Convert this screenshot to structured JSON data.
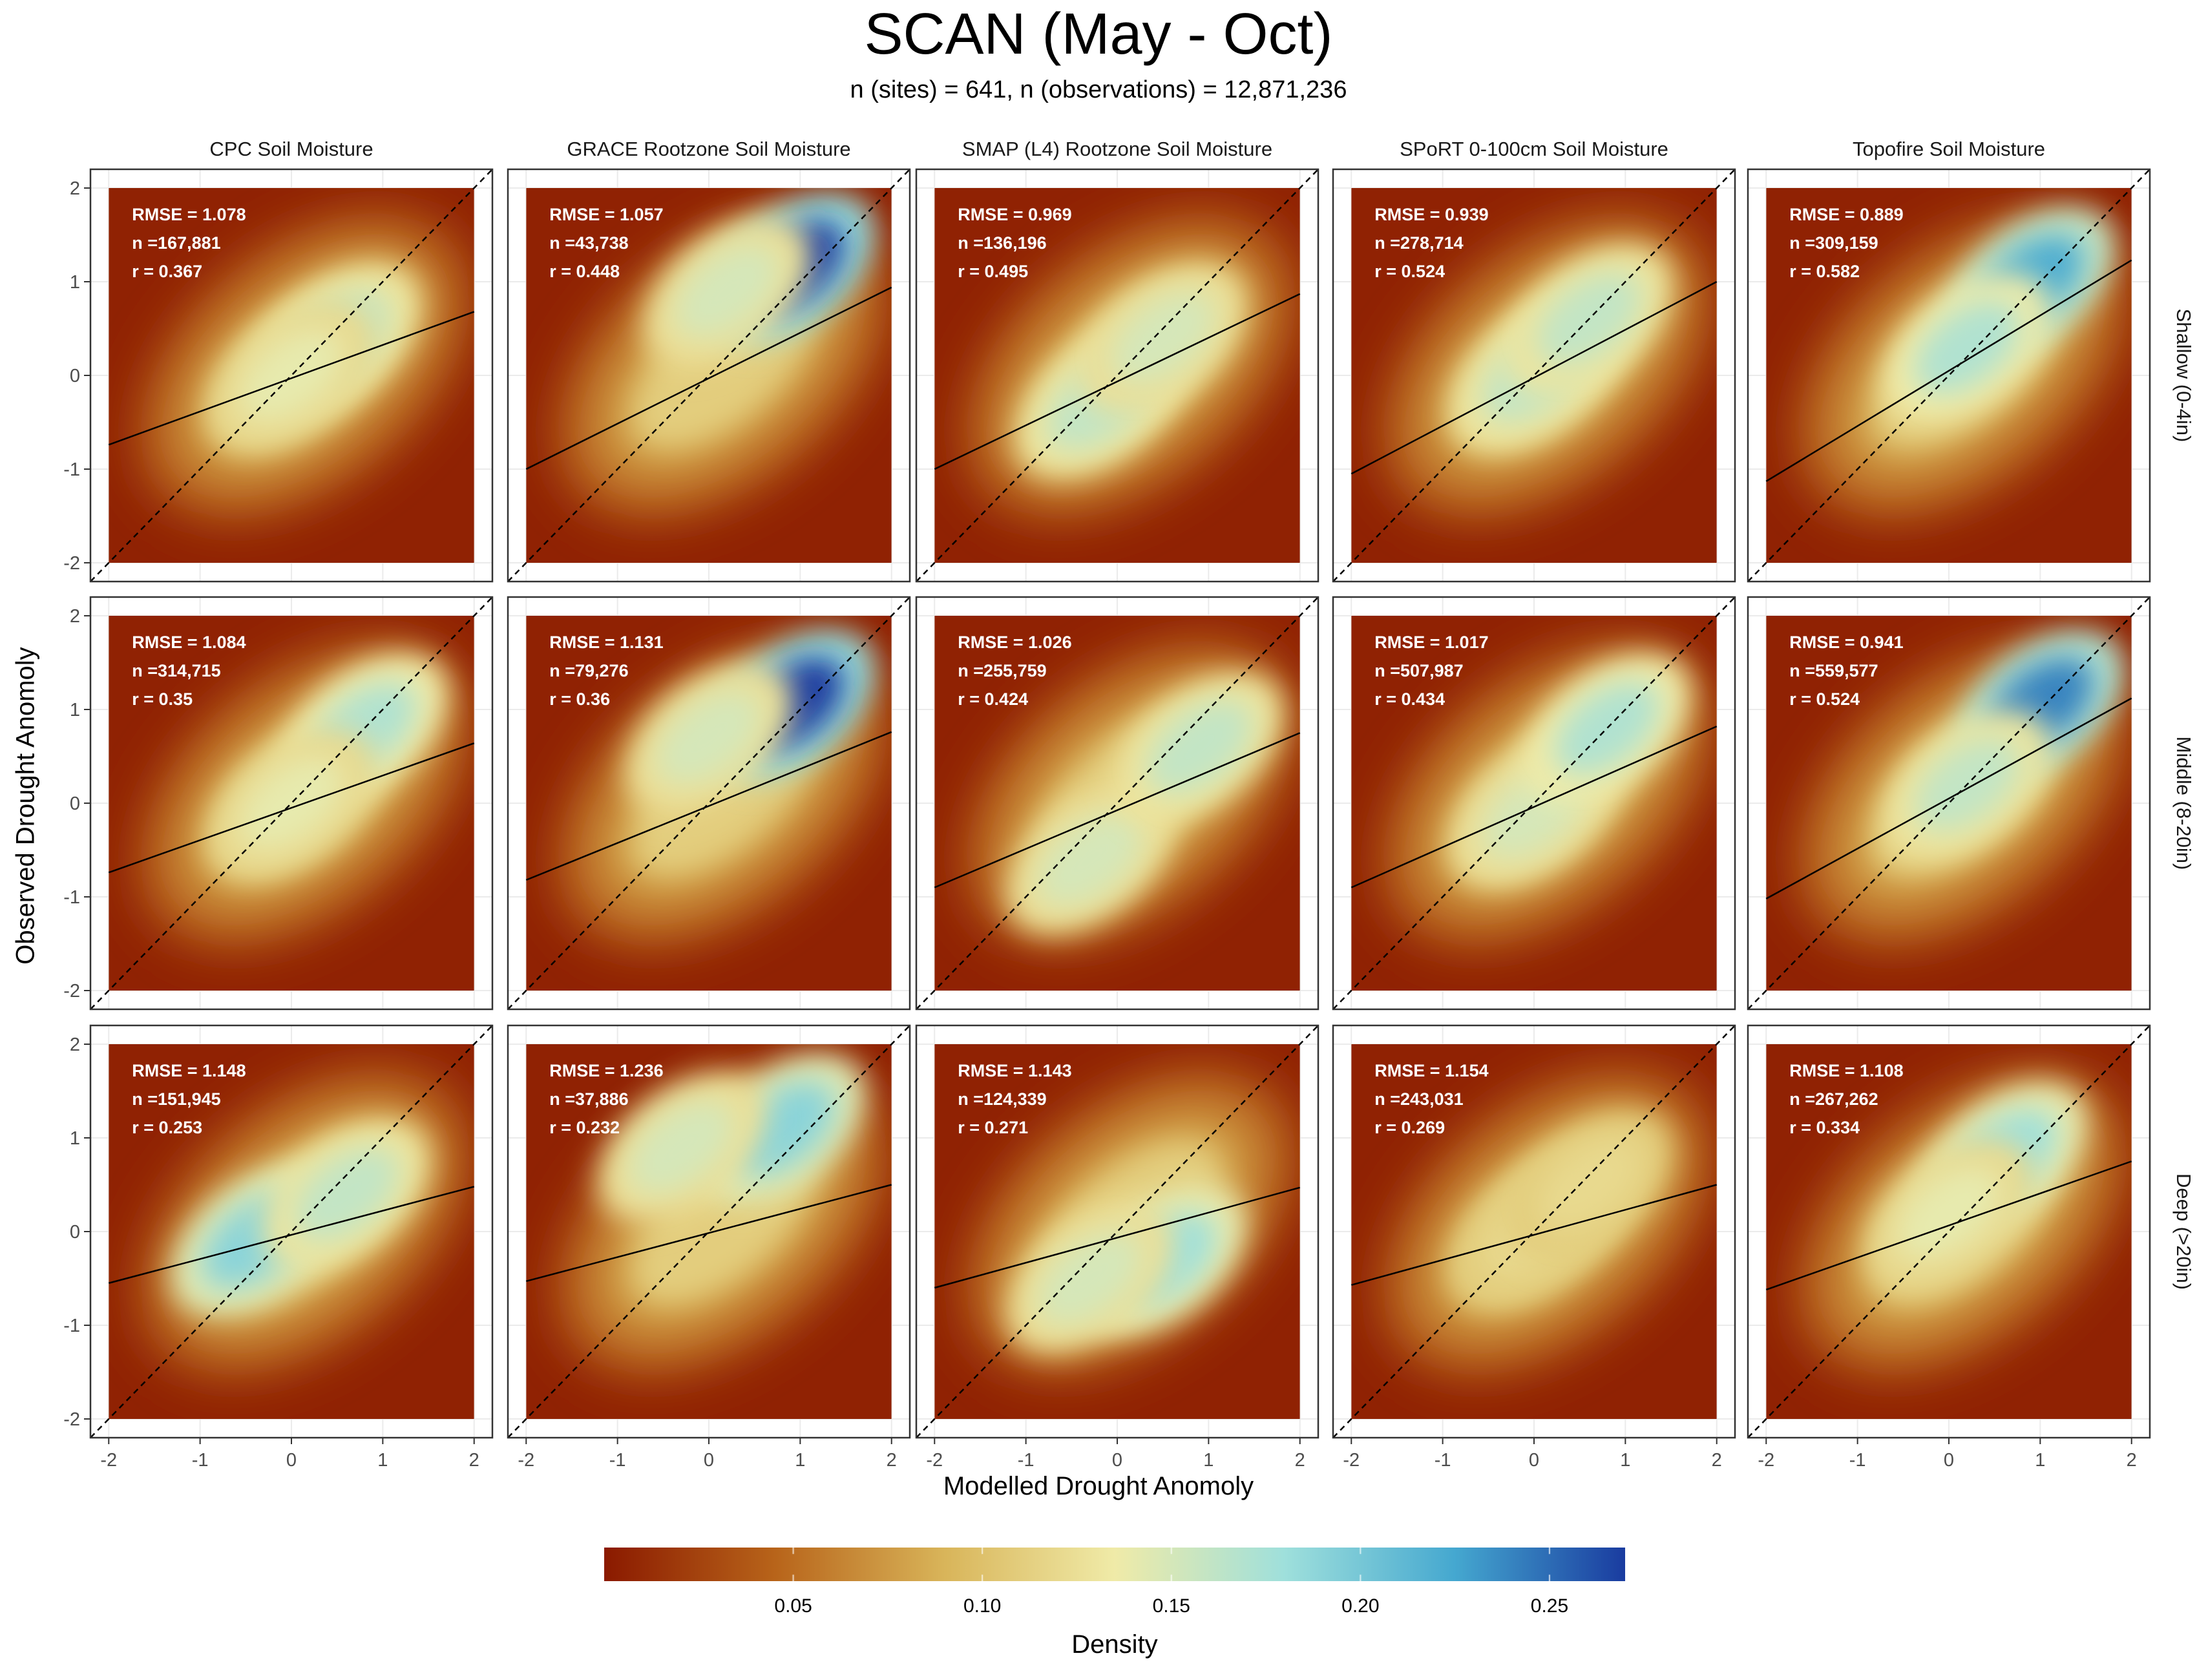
{
  "title": "SCAN (May - Oct)",
  "subtitle": "n (sites) = 641, n (observations) = 12,871,236",
  "xlabel": "Modelled Drought Anomoly",
  "ylabel": "Observed Drought Anomoly",
  "legend": {
    "title": "Density",
    "ticks": [
      "0.05",
      "0.10",
      "0.15",
      "0.20",
      "0.25"
    ],
    "tick_values": [
      0.05,
      0.1,
      0.15,
      0.2,
      0.25
    ],
    "range": [
      0.0,
      0.27
    ],
    "colors": [
      "#8b1a00",
      "#b8641a",
      "#d9b55a",
      "#f0eba8",
      "#9fe0dc",
      "#45a8d0",
      "#1a3ca0"
    ]
  },
  "chart_data": {
    "type": "heatmap",
    "title": "SCAN (May - Oct)",
    "subtitle": "n (sites) = 641, n (observations) = 12,871,236",
    "xlabel": "Modelled Drought Anomoly",
    "ylabel": "Observed Drought Anomoly",
    "xlim": [
      -2,
      2
    ],
    "ylim": [
      -2,
      2
    ],
    "x_ticks": [
      "-2",
      "-1",
      "0",
      "1",
      "2"
    ],
    "y_ticks": [
      "-2",
      "-1",
      "0",
      "1",
      "2"
    ],
    "x_tick_values": [
      -2,
      -1,
      0,
      1,
      2
    ],
    "y_tick_values": [
      -2,
      -1,
      0,
      1,
      2
    ],
    "grid": true,
    "columns": [
      "CPC Soil Moisture",
      "GRACE Rootzone Soil Moisture",
      "SMAP (L4) Rootzone Soil Moisture",
      "SPoRT 0-100cm Soil Moisture",
      "Topofire Soil Moisture"
    ],
    "rows": [
      "Shallow (0-4in)",
      "Middle (8-20in)",
      "Deep (>20in)"
    ],
    "reference_line": "1:1 (dashed)",
    "panels": [
      {
        "row": 0,
        "col": 0,
        "rmse": "RMSE = 1.078",
        "n": "n =167,881",
        "r": "r = 0.367",
        "fit": [
          -0.74,
          0.68
        ],
        "hotspots": [
          {
            "x": 0.5,
            "y": 0.4,
            "d": 0.16
          },
          {
            "x": 0.0,
            "y": 0.0,
            "d": 0.14
          }
        ]
      },
      {
        "row": 0,
        "col": 1,
        "rmse": "RMSE = 1.057",
        "n": "n =43,738",
        "r": "r = 0.448",
        "fit": [
          -1.0,
          0.94
        ],
        "hotspots": [
          {
            "x": 0.9,
            "y": 1.15,
            "d": 0.27
          },
          {
            "x": 0.2,
            "y": 0.9,
            "d": 0.15
          }
        ]
      },
      {
        "row": 0,
        "col": 2,
        "rmse": "RMSE = 0.969",
        "n": "n =136,196",
        "r": "r = 0.495",
        "fit": [
          -1.0,
          0.87
        ],
        "hotspots": [
          {
            "x": -0.2,
            "y": -0.3,
            "d": 0.16
          },
          {
            "x": 0.5,
            "y": 0.4,
            "d": 0.15
          }
        ]
      },
      {
        "row": 0,
        "col": 3,
        "rmse": "RMSE = 0.939",
        "n": "n =278,714",
        "r": "r = 0.524",
        "fit": [
          -1.05,
          1.0
        ],
        "hotspots": [
          {
            "x": 0.0,
            "y": 0.0,
            "d": 0.16
          },
          {
            "x": 0.6,
            "y": 0.6,
            "d": 0.16
          }
        ]
      },
      {
        "row": 0,
        "col": 4,
        "rmse": "RMSE = 0.889",
        "n": "n =309,159",
        "r": "r = 0.582",
        "fit": [
          -1.13,
          1.23
        ],
        "hotspots": [
          {
            "x": 0.9,
            "y": 1.0,
            "d": 0.22
          },
          {
            "x": 0.2,
            "y": 0.3,
            "d": 0.17
          }
        ]
      },
      {
        "row": 1,
        "col": 0,
        "rmse": "RMSE = 1.084",
        "n": "n =314,715",
        "r": "r = 0.35",
        "fit": [
          -0.74,
          0.64
        ],
        "hotspots": [
          {
            "x": 0.8,
            "y": 0.8,
            "d": 0.17
          },
          {
            "x": 0.0,
            "y": 0.0,
            "d": 0.14
          }
        ]
      },
      {
        "row": 1,
        "col": 1,
        "rmse": "RMSE = 1.131",
        "n": "n =79,276",
        "r": "r = 0.36",
        "fit": [
          -0.82,
          0.76
        ],
        "hotspots": [
          {
            "x": 0.9,
            "y": 1.05,
            "d": 0.27
          },
          {
            "x": 0.0,
            "y": 0.7,
            "d": 0.15
          }
        ]
      },
      {
        "row": 1,
        "col": 2,
        "rmse": "RMSE = 1.026",
        "n": "n =255,759",
        "r": "r = 0.424",
        "fit": [
          -0.9,
          0.75
        ],
        "hotspots": [
          {
            "x": -0.3,
            "y": -0.6,
            "d": 0.15
          },
          {
            "x": 0.9,
            "y": 0.6,
            "d": 0.16
          }
        ]
      },
      {
        "row": 1,
        "col": 3,
        "rmse": "RMSE = 1.017",
        "n": "n =507,987",
        "r": "r = 0.434",
        "fit": [
          -0.9,
          0.82
        ],
        "hotspots": [
          {
            "x": 0.0,
            "y": -0.1,
            "d": 0.15
          },
          {
            "x": 0.8,
            "y": 0.8,
            "d": 0.17
          }
        ]
      },
      {
        "row": 1,
        "col": 4,
        "rmse": "RMSE = 0.941",
        "n": "n =559,577",
        "r": "r = 0.524",
        "fit": [
          -1.02,
          1.12
        ],
        "hotspots": [
          {
            "x": 1.0,
            "y": 1.05,
            "d": 0.24
          },
          {
            "x": 0.2,
            "y": 0.2,
            "d": 0.16
          }
        ]
      },
      {
        "row": 2,
        "col": 0,
        "rmse": "RMSE = 1.148",
        "n": "n =151,945",
        "r": "r = 0.253",
        "fit": [
          -0.55,
          0.48
        ],
        "hotspots": [
          {
            "x": -0.4,
            "y": -0.1,
            "d": 0.19
          },
          {
            "x": 0.6,
            "y": 0.4,
            "d": 0.16
          }
        ]
      },
      {
        "row": 2,
        "col": 1,
        "rmse": "RMSE = 1.236",
        "n": "n =37,886",
        "r": "r = 0.232",
        "fit": [
          -0.53,
          0.5
        ],
        "hotspots": [
          {
            "x": 0.8,
            "y": 1.1,
            "d": 0.19
          },
          {
            "x": -0.3,
            "y": 0.9,
            "d": 0.15
          }
        ]
      },
      {
        "row": 2,
        "col": 2,
        "rmse": "RMSE = 1.143",
        "n": "n =124,339",
        "r": "r = 0.271",
        "fit": [
          -0.6,
          0.47
        ],
        "hotspots": [
          {
            "x": 0.5,
            "y": -0.3,
            "d": 0.18
          },
          {
            "x": -0.3,
            "y": -0.5,
            "d": 0.15
          }
        ]
      },
      {
        "row": 2,
        "col": 3,
        "rmse": "RMSE = 1.154",
        "n": "n =243,031",
        "r": "r = 0.269",
        "fit": [
          -0.57,
          0.5
        ],
        "hotspots": [
          {
            "x": 0.0,
            "y": 0.0,
            "d": 0.12
          },
          {
            "x": 0.6,
            "y": 0.5,
            "d": 0.12
          }
        ]
      },
      {
        "row": 2,
        "col": 4,
        "rmse": "RMSE = 1.108",
        "n": "n =267,262",
        "r": "r = 0.334",
        "fit": [
          -0.62,
          0.75
        ],
        "hotspots": [
          {
            "x": 0.6,
            "y": 0.8,
            "d": 0.18
          },
          {
            "x": 0.0,
            "y": 0.2,
            "d": 0.14
          }
        ]
      }
    ]
  }
}
